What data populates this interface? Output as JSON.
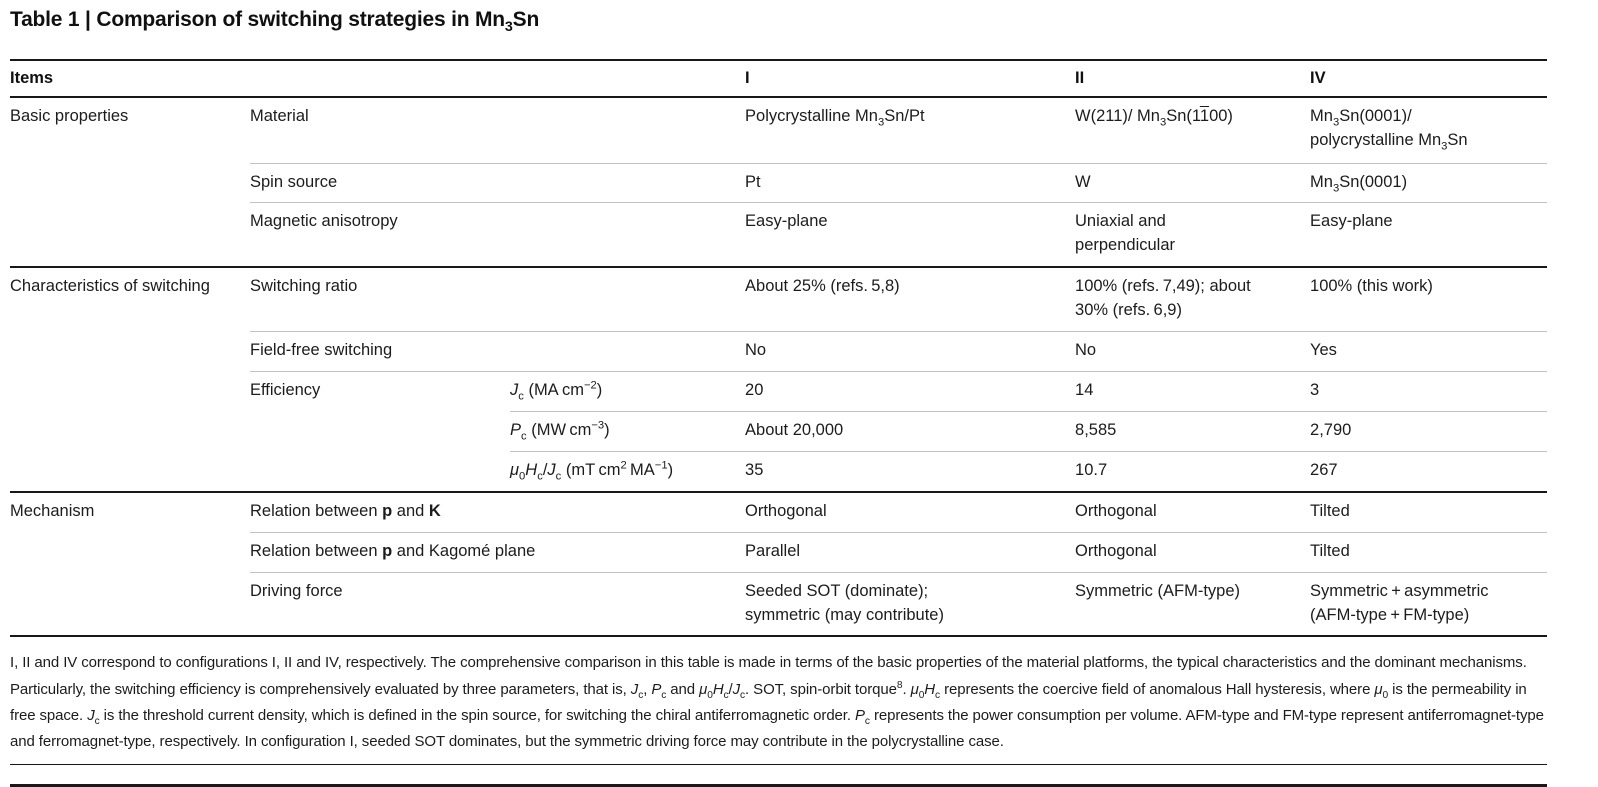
{
  "page": {
    "title_html": "Table 1 | Comparison of switching strategies in Mn<sub>3</sub>Sn"
  },
  "table": {
    "header": {
      "items": "Items",
      "I": "I",
      "II": "II",
      "IV": "IV"
    },
    "rows": {
      "material": {
        "group": "Basic properties",
        "label": "Material",
        "I": "Polycrystalline Mn<sub>3</sub>Sn/Pt",
        "II": "W(211)/ Mn<sub>3</sub>Sn(1<span class=\"ovl\">1</span>00)",
        "IV": "Mn<sub>3</sub>Sn(0001)/<br>polycrystalline Mn<sub>3</sub>Sn"
      },
      "spin_source": {
        "label": "Spin source",
        "I": "Pt",
        "II": "W",
        "IV": "Mn<sub>3</sub>Sn(0001)"
      },
      "magnetic_anisotropy": {
        "label": "Magnetic anisotropy",
        "I": "Easy-plane",
        "II": "Uniaxial and<br>perpendicular",
        "IV": "Easy-plane"
      },
      "switching_ratio": {
        "group": "Characteristics of switching",
        "label": "Switching ratio",
        "I": "About 25% (refs. 5,8)",
        "II": "100% (refs. 7,49); about<br>30% (refs. 6,9)",
        "IV": "100% (this work)"
      },
      "field_free": {
        "label": "Field-free switching",
        "I": "No",
        "II": "No",
        "IV": "Yes"
      },
      "efficiency_jc": {
        "label": "Efficiency",
        "param": "<i>J</i><sub>c</sub> (MA cm<sup>−2</sup>)",
        "I": "20",
        "II": "14",
        "IV": "3"
      },
      "efficiency_pc": {
        "param": "<i>P</i><sub>c</sub> (MW cm<sup>−3</sup>)",
        "I": "About 20,000",
        "II": "8,585",
        "IV": "2,790"
      },
      "efficiency_h": {
        "param": "<i>μ</i><sub>0</sub><i>H</i><sub>c</sub>/<i>J</i><sub>c</sub> (mT cm<sup>2</sup> MA<sup>−1</sup>)",
        "I": "35",
        "II": "10.7",
        "IV": "267"
      },
      "relation_pk": {
        "group": "Mechanism",
        "label": "Relation between <b>p</b> and <b>K</b>",
        "I": "Orthogonal",
        "II": "Orthogonal",
        "IV": "Tilted"
      },
      "relation_kagome": {
        "label": "Relation between <b>p</b> and Kagomé plane",
        "I": "Parallel",
        "II": "Orthogonal",
        "IV": "Tilted"
      },
      "driving_force": {
        "label": "Driving force",
        "I": "Seeded SOT (dominate);<br>symmetric (may contribute)",
        "II": "Symmetric (AFM-type)",
        "IV": "Symmetric + asymmetric<br>(AFM-type + FM-type)"
      }
    }
  },
  "footnote_html": "I, II and IV correspond to configurations I, II and IV, respectively. The comprehensive comparison in this table is made in terms of the basic properties of the material platforms, the typical characteristics and the dominant mechanisms. Particularly, the switching efficiency is comprehensively evaluated by three parameters, that is, <i>J</i><sub>c</sub>, <i>P</i><sub>c</sub> and <i>μ</i><sub>0</sub><i>H</i><sub>c</sub>/<i>J</i><sub>c</sub>. SOT, spin-orbit torque<sup>8</sup>. <i>μ</i><sub>0</sub><i>H</i><sub>c</sub> represents the coercive field of anomalous Hall hysteresis, where <i>μ</i><sub>0</sub> is the permeability in free space. <i>J</i><sub>c</sub> is the threshold current density, which is defined in the spin source, for switching the chiral antiferromagnetic order. <i>P</i><sub>c</sub> represents the power consumption per volume. AFM-type and FM-type represent antiferromagnet-type and ferromagnet-type, respectively. In configuration I, seeded SOT dominates, but the symmetric driving force may contribute in the polycrystalline case."
}
